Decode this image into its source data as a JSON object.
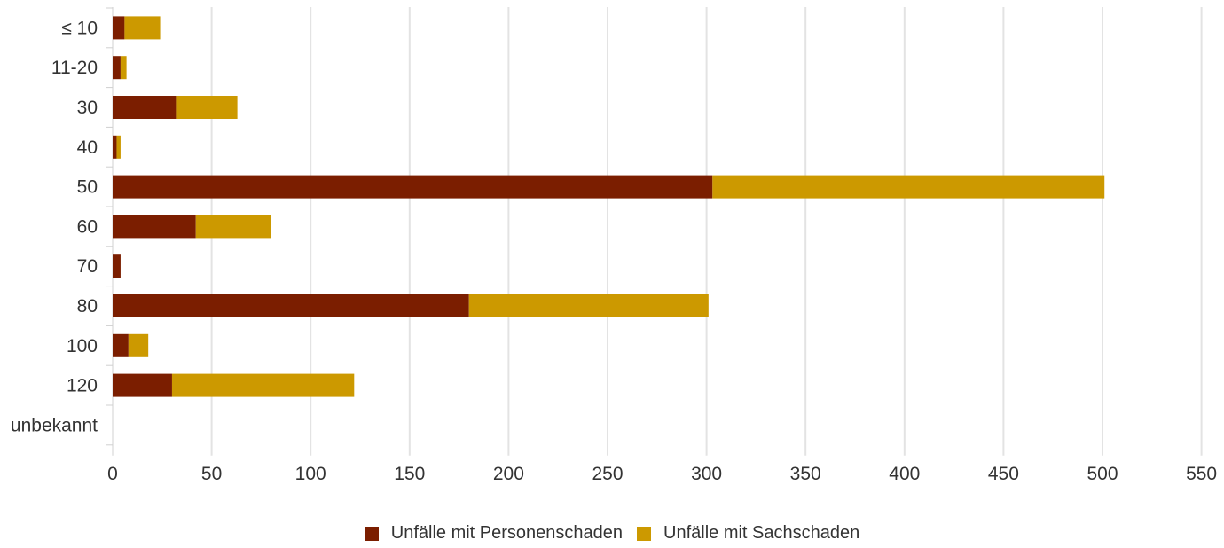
{
  "chart_data": {
    "type": "bar",
    "orientation": "horizontal",
    "stacked": true,
    "categories": [
      "≤ 10",
      "11-20",
      "30",
      "40",
      "50",
      "60",
      "70",
      "80",
      "100",
      "120",
      "unbekannt"
    ],
    "series": [
      {
        "name": "Unfälle mit Personenschaden",
        "color": "#7b1e00",
        "values": [
          6,
          4,
          32,
          2,
          303,
          42,
          4,
          180,
          8,
          30,
          0
        ]
      },
      {
        "name": "Unfälle mit Sachschaden",
        "color": "#cc9900",
        "values": [
          18,
          3,
          31,
          2,
          198,
          38,
          0,
          121,
          10,
          92,
          0
        ]
      }
    ],
    "xlim": [
      0,
      550
    ],
    "xticks": [
      0,
      50,
      100,
      150,
      200,
      250,
      300,
      350,
      400,
      450,
      500,
      550
    ],
    "grid": true,
    "legend_position": "bottom"
  }
}
